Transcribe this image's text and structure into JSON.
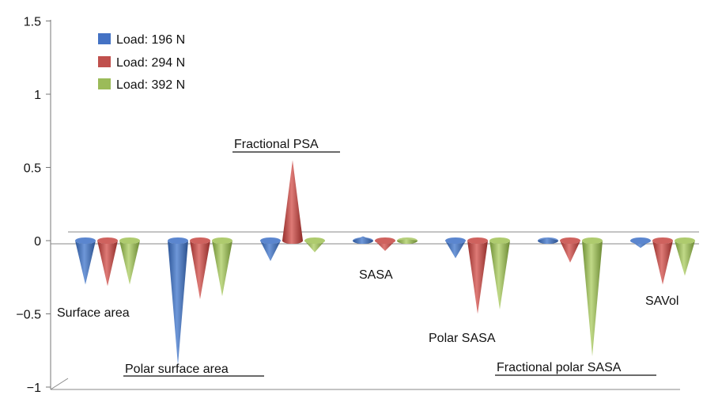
{
  "chart_data": {
    "type": "bar",
    "style": "3d-cone",
    "categories": [
      "Surface area",
      "Polar surface area",
      "Fractional PSA",
      "SASA",
      "Polar SASA",
      "Fractional polar SASA",
      "SAVol"
    ],
    "series": [
      {
        "name": "Load: 196 N",
        "color": "#4472c4",
        "values": [
          -0.3,
          -0.85,
          -0.14,
          0.03,
          -0.12,
          0.02,
          -0.05
        ]
      },
      {
        "name": "Load: 294 N",
        "color": "#c0504d",
        "values": [
          -0.31,
          -0.4,
          0.55,
          -0.07,
          -0.5,
          -0.15,
          -0.3
        ]
      },
      {
        "name": "Load: 392 N",
        "color": "#9bbb59",
        "values": [
          -0.3,
          -0.38,
          -0.08,
          0.01,
          -0.47,
          -0.79,
          -0.24
        ]
      }
    ],
    "ylim": [
      -1,
      1.5
    ],
    "yticks": [
      "1.5",
      "1",
      "0.5",
      "0",
      "−0.5",
      "−1"
    ],
    "ytick_values": [
      1.5,
      1,
      0.5,
      0,
      -0.5,
      -1
    ],
    "legend": "top-left",
    "underlined_labels": [
      "Polar surface area",
      "Fractional PSA",
      "Fractional polar SASA"
    ]
  }
}
